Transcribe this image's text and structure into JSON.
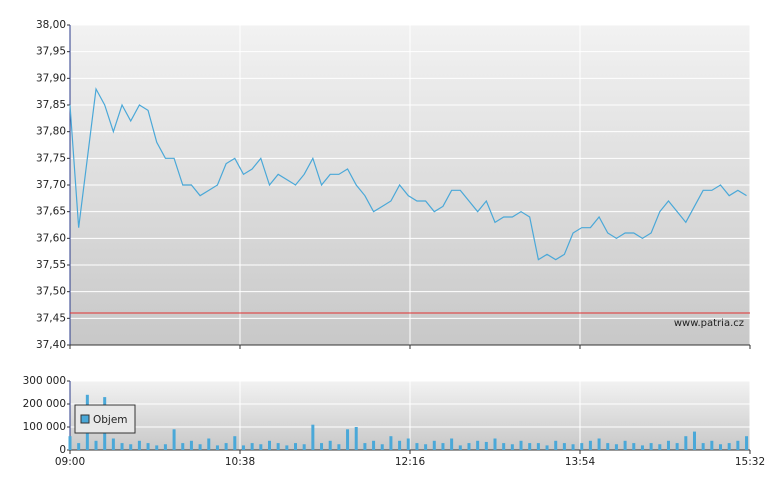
{
  "chart_data": [
    {
      "type": "line",
      "x": [
        0,
        5,
        10,
        15,
        20,
        25,
        30,
        35,
        40,
        45,
        50,
        55,
        60,
        65,
        70,
        75,
        80,
        85,
        90,
        95,
        100,
        105,
        110,
        115,
        120,
        125,
        130,
        135,
        140,
        145,
        150,
        155,
        160,
        165,
        170,
        175,
        180,
        185,
        190,
        195,
        200,
        205,
        210,
        215,
        220,
        225,
        230,
        235,
        240,
        245,
        250,
        255,
        260,
        265,
        270,
        275,
        280,
        285,
        290,
        295,
        300,
        305,
        310,
        315,
        320,
        325,
        330,
        335,
        340,
        345,
        350,
        355,
        360,
        365,
        370,
        375,
        380,
        385,
        390
      ],
      "series": [
        {
          "color": "#4aa8d8",
          "values": [
            37.85,
            37.62,
            37.75,
            37.88,
            37.85,
            37.8,
            37.85,
            37.82,
            37.85,
            37.84,
            37.78,
            37.75,
            37.75,
            37.7,
            37.7,
            37.68,
            37.69,
            37.7,
            37.74,
            37.75,
            37.72,
            37.73,
            37.75,
            37.7,
            37.72,
            37.71,
            37.7,
            37.72,
            37.75,
            37.7,
            37.72,
            37.72,
            37.73,
            37.7,
            37.68,
            37.65,
            37.66,
            37.67,
            37.7,
            37.68,
            37.67,
            37.67,
            37.65,
            37.66,
            37.69,
            37.69,
            37.67,
            37.65,
            37.67,
            37.63,
            37.64,
            37.64,
            37.65,
            37.64,
            37.56,
            37.57,
            37.56,
            37.57,
            37.61,
            37.62,
            37.62,
            37.64,
            37.61,
            37.6,
            37.61,
            37.61,
            37.6,
            37.61,
            37.65,
            37.67,
            37.65,
            37.63,
            37.66,
            37.69,
            37.69,
            37.7,
            37.68,
            37.69,
            37.68
          ]
        }
      ],
      "xlim": [
        0,
        392
      ],
      "ylim": [
        37.4,
        38.0
      ],
      "yticks": [
        {
          "value": 37.4,
          "label": "37,40"
        },
        {
          "value": 37.45,
          "label": "37,45"
        },
        {
          "value": 37.5,
          "label": "37,50"
        },
        {
          "value": 37.55,
          "label": "37,55"
        },
        {
          "value": 37.6,
          "label": "37,60"
        },
        {
          "value": 37.65,
          "label": "37,65"
        },
        {
          "value": 37.7,
          "label": "37,70"
        },
        {
          "value": 37.75,
          "label": "37,75"
        },
        {
          "value": 37.8,
          "label": "37,80"
        },
        {
          "value": 37.85,
          "label": "37,85"
        },
        {
          "value": 37.9,
          "label": "37,90"
        },
        {
          "value": 37.95,
          "label": "37,95"
        },
        {
          "value": 38.0,
          "label": "38,00"
        }
      ],
      "reference_line": {
        "value": 37.46,
        "color": "#e03030"
      },
      "annotation": "www.patria.cz",
      "grid": true
    },
    {
      "type": "bar",
      "x": [
        0,
        5,
        10,
        15,
        20,
        25,
        30,
        35,
        40,
        45,
        50,
        55,
        60,
        65,
        70,
        75,
        80,
        85,
        90,
        95,
        100,
        105,
        110,
        115,
        120,
        125,
        130,
        135,
        140,
        145,
        150,
        155,
        160,
        165,
        170,
        175,
        180,
        185,
        190,
        195,
        200,
        205,
        210,
        215,
        220,
        225,
        230,
        235,
        240,
        245,
        250,
        255,
        260,
        265,
        270,
        275,
        280,
        285,
        290,
        295,
        300,
        305,
        310,
        315,
        320,
        325,
        330,
        335,
        340,
        345,
        350,
        355,
        360,
        365,
        370,
        375,
        380,
        385,
        390
      ],
      "series": [
        {
          "name": "Objem",
          "color": "#4aa8d8",
          "values": [
            60000,
            30000,
            240000,
            40000,
            230000,
            50000,
            30000,
            25000,
            40000,
            30000,
            20000,
            25000,
            90000,
            30000,
            40000,
            25000,
            50000,
            20000,
            30000,
            60000,
            20000,
            30000,
            25000,
            40000,
            30000,
            20000,
            30000,
            25000,
            110000,
            30000,
            40000,
            25000,
            90000,
            100000,
            30000,
            40000,
            25000,
            60000,
            40000,
            50000,
            30000,
            25000,
            40000,
            30000,
            50000,
            20000,
            30000,
            40000,
            35000,
            50000,
            30000,
            25000,
            40000,
            30000,
            30000,
            20000,
            40000,
            30000,
            25000,
            30000,
            40000,
            50000,
            30000,
            25000,
            40000,
            30000,
            20000,
            30000,
            25000,
            40000,
            30000,
            60000,
            80000,
            30000,
            40000,
            25000,
            30000,
            40000,
            60000
          ]
        }
      ],
      "xlim": [
        0,
        392
      ],
      "xticks": [
        {
          "value": 0,
          "label": "09:00"
        },
        {
          "value": 98,
          "label": "10:38"
        },
        {
          "value": 196,
          "label": "12:16"
        },
        {
          "value": 294,
          "label": "13:54"
        },
        {
          "value": 392,
          "label": "15:32"
        }
      ],
      "ylim": [
        0,
        300000
      ],
      "yticks": [
        0,
        {
          "value": 100000,
          "label": "100 000"
        },
        {
          "value": 200000,
          "label": "200 000"
        },
        {
          "value": 300000,
          "label": "300 000"
        }
      ],
      "legend": "upper left",
      "grid": true
    }
  ]
}
